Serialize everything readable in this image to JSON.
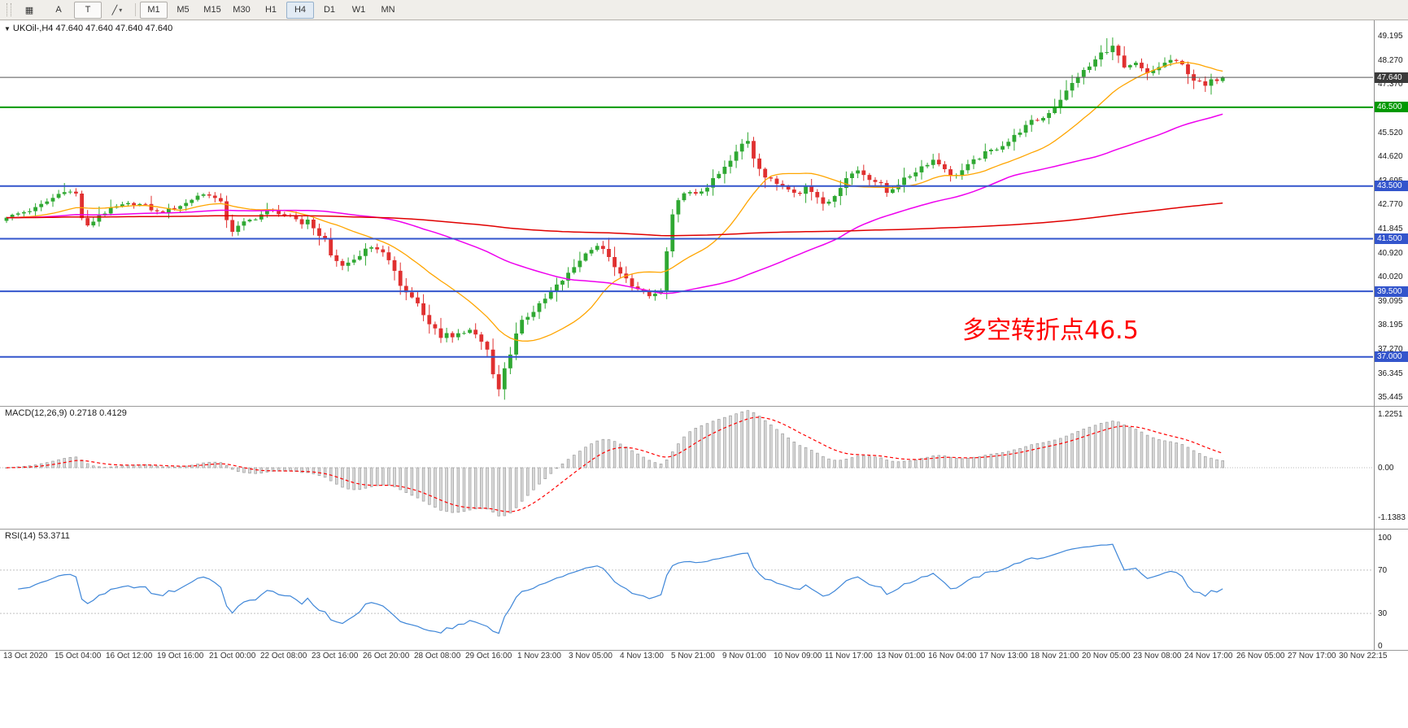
{
  "toolbar": {
    "tools": [
      {
        "id": "chart-grid-icon",
        "glyph": "▦"
      },
      {
        "id": "arrow-tool",
        "label": "A"
      },
      {
        "id": "text-tool",
        "label": "T"
      },
      {
        "id": "line-style-tool",
        "glyph": "╱",
        "caret": "▾"
      }
    ],
    "timeframes": [
      "M1",
      "M5",
      "M15",
      "M30",
      "H1",
      "H4",
      "D1",
      "W1",
      "MN"
    ],
    "active_timeframe": "H4",
    "framed_timeframe": "M1"
  },
  "chart": {
    "symbol_line": "UKOil-,H4 47.640 47.640 47.640 47.640",
    "collapse_arrow": "▼",
    "annotation": {
      "text": "多空转折点46.5",
      "color": "#FF0000"
    },
    "colors": {
      "bull": "#2FA832",
      "bear": "#E03030",
      "ma_fast": "#FFA500",
      "ma_mid": "#EE00EE",
      "ma_slow": "#E00000"
    },
    "price_axis_labels": [
      "49.195",
      "48.270",
      "47.370",
      "45.520",
      "44.620",
      "43.695",
      "42.770",
      "41.845",
      "40.920",
      "40.020",
      "39.095",
      "38.195",
      "37.270",
      "36.345",
      "35.445"
    ],
    "hlines": [
      {
        "name": "current-price-line",
        "price": 47.64,
        "label": "47.640",
        "color": "#555555",
        "badge_bg": "#3A3A3A",
        "width": 1
      },
      {
        "name": "turning-point-line",
        "price": 46.5,
        "label": "46.500",
        "color": "#009900",
        "badge_bg": "#009900",
        "width": 2
      },
      {
        "name": "resistance-line-43-5",
        "price": 43.5,
        "label": "43.500",
        "color": "#3355CC",
        "badge_bg": "#3355CC",
        "width": 2
      },
      {
        "name": "support-line-41-5",
        "price": 41.5,
        "label": "41.500",
        "color": "#3355CC",
        "badge_bg": "#3355CC",
        "width": 2
      },
      {
        "name": "support-line-39-5",
        "price": 39.5,
        "label": "39.500",
        "color": "#3355CC",
        "badge_bg": "#3355CC",
        "width": 2
      },
      {
        "name": "support-line-37-0",
        "price": 37.0,
        "label": "37.000",
        "color": "#3355CC",
        "badge_bg": "#3355CC",
        "width": 2
      }
    ],
    "chart_data": {
      "type": "candlestick",
      "symbol": "UKOil-",
      "timeframe": "H4",
      "current_price": 47.64,
      "price_range_visible": [
        35.445,
        49.195
      ],
      "close_anchors": [
        [
          0,
          42.3
        ],
        [
          2,
          42.45
        ],
        [
          5,
          42.65
        ],
        [
          8,
          43.05
        ],
        [
          10,
          43.35
        ],
        [
          12,
          43.2
        ],
        [
          13,
          42.3
        ],
        [
          14,
          41.95
        ],
        [
          16,
          42.4
        ],
        [
          19,
          42.7
        ],
        [
          22,
          42.85
        ],
        [
          24,
          42.75
        ],
        [
          26,
          42.5
        ],
        [
          28,
          42.6
        ],
        [
          31,
          42.85
        ],
        [
          33,
          43.15
        ],
        [
          35,
          43.2
        ],
        [
          37,
          42.85
        ],
        [
          38,
          42.25
        ],
        [
          39,
          41.8
        ],
        [
          41,
          42.1
        ],
        [
          43,
          42.3
        ],
        [
          45,
          42.55
        ],
        [
          47,
          42.5
        ],
        [
          49,
          42.3
        ],
        [
          51,
          42.05
        ],
        [
          52,
          42.25
        ],
        [
          53,
          41.9
        ],
        [
          55,
          41.45
        ],
        [
          56,
          40.9
        ],
        [
          58,
          40.45
        ],
        [
          60,
          40.7
        ],
        [
          62,
          41.05
        ],
        [
          64,
          41.15
        ],
        [
          66,
          40.75
        ],
        [
          67,
          40.2
        ],
        [
          68,
          39.7
        ],
        [
          70,
          39.25
        ],
        [
          71,
          39.05
        ],
        [
          72,
          38.6
        ],
        [
          74,
          38.05
        ],
        [
          75,
          37.75
        ],
        [
          76,
          37.95
        ],
        [
          77,
          37.7
        ],
        [
          79,
          37.95
        ],
        [
          80,
          38.1
        ],
        [
          82,
          37.6
        ],
        [
          83,
          37.25
        ],
        [
          84,
          36.3
        ],
        [
          85,
          35.75
        ],
        [
          86,
          36.55
        ],
        [
          87,
          37.15
        ],
        [
          88,
          37.9
        ],
        [
          89,
          38.4
        ],
        [
          91,
          38.75
        ],
        [
          93,
          39.2
        ],
        [
          95,
          39.7
        ],
        [
          97,
          40.15
        ],
        [
          99,
          40.7
        ],
        [
          101,
          41.15
        ],
        [
          102,
          41.25
        ],
        [
          104,
          40.85
        ],
        [
          105,
          40.35
        ],
        [
          107,
          39.95
        ],
        [
          109,
          39.55
        ],
        [
          111,
          39.3
        ],
        [
          113,
          39.5
        ],
        [
          114,
          41.0
        ],
        [
          115,
          42.35
        ],
        [
          116,
          42.9
        ],
        [
          117,
          43.3
        ],
        [
          119,
          43.15
        ],
        [
          121,
          43.5
        ],
        [
          123,
          43.95
        ],
        [
          125,
          44.45
        ],
        [
          127,
          45.1
        ],
        [
          128,
          45.25
        ],
        [
          129,
          44.6
        ],
        [
          131,
          43.85
        ],
        [
          133,
          43.6
        ],
        [
          135,
          43.45
        ],
        [
          137,
          43.2
        ],
        [
          138,
          43.5
        ],
        [
          140,
          43.1
        ],
        [
          141,
          42.9
        ],
        [
          143,
          43.05
        ],
        [
          144,
          43.5
        ],
        [
          145,
          43.85
        ],
        [
          147,
          44.1
        ],
        [
          149,
          43.8
        ],
        [
          151,
          43.55
        ],
        [
          152,
          43.25
        ],
        [
          154,
          43.6
        ],
        [
          156,
          43.9
        ],
        [
          158,
          44.25
        ],
        [
          160,
          44.5
        ],
        [
          162,
          44.2
        ],
        [
          163,
          43.85
        ],
        [
          165,
          44.1
        ],
        [
          167,
          44.45
        ],
        [
          169,
          44.75
        ],
        [
          171,
          44.95
        ],
        [
          173,
          45.2
        ],
        [
          175,
          45.6
        ],
        [
          177,
          45.95
        ],
        [
          179,
          46.1
        ],
        [
          181,
          46.55
        ],
        [
          183,
          47.1
        ],
        [
          185,
          47.7
        ],
        [
          187,
          48.05
        ],
        [
          189,
          48.55
        ],
        [
          191,
          48.8
        ],
        [
          192,
          48.45
        ],
        [
          193,
          47.95
        ],
        [
          195,
          48.15
        ],
        [
          197,
          47.75
        ],
        [
          199,
          48.05
        ],
        [
          201,
          48.3
        ],
        [
          203,
          48.1
        ],
        [
          205,
          47.55
        ],
        [
          207,
          47.3
        ],
        [
          208,
          47.5
        ],
        [
          210,
          47.64
        ]
      ],
      "key_extremes": [
        {
          "bar": 10,
          "high": 43.62
        },
        {
          "bar": 85,
          "low": 35.5
        },
        {
          "bar": 114,
          "low": 39.2
        },
        {
          "bar": 128,
          "high": 45.55
        },
        {
          "bar": 190,
          "high": 49.13
        }
      ]
    }
  },
  "macd": {
    "label": "MACD(12,26,9) 0.2718 0.4129",
    "axis": [
      "1.2251",
      "0.00",
      "-1.1383"
    ],
    "histogram_color": "#DADADA",
    "signal_color": "#FF0000"
  },
  "rsi": {
    "label": "RSI(14) 53.3711",
    "axis": [
      "100",
      "70",
      "30",
      "0"
    ],
    "levels": [
      70,
      30
    ],
    "line_color": "#3E86D8"
  },
  "date_axis": [
    "13 Oct 2020",
    "15 Oct 04:00",
    "16 Oct 12:00",
    "19 Oct 16:00",
    "21 Oct 00:00",
    "22 Oct 08:00",
    "23 Oct 16:00",
    "26 Oct 20:00",
    "28 Oct 08:00",
    "29 Oct 16:00",
    "1 Nov 23:00",
    "3 Nov 05:00",
    "4 Nov 13:00",
    "5 Nov 21:00",
    "9 Nov 01:00",
    "10 Nov 09:00",
    "11 Nov 17:00",
    "13 Nov 01:00",
    "16 Nov 04:00",
    "17 Nov 13:00",
    "18 Nov 21:00",
    "20 Nov 05:00",
    "23 Nov 08:00",
    "24 Nov 17:00",
    "26 Nov 05:00",
    "27 Nov 17:00",
    "30 Nov 22:15"
  ]
}
